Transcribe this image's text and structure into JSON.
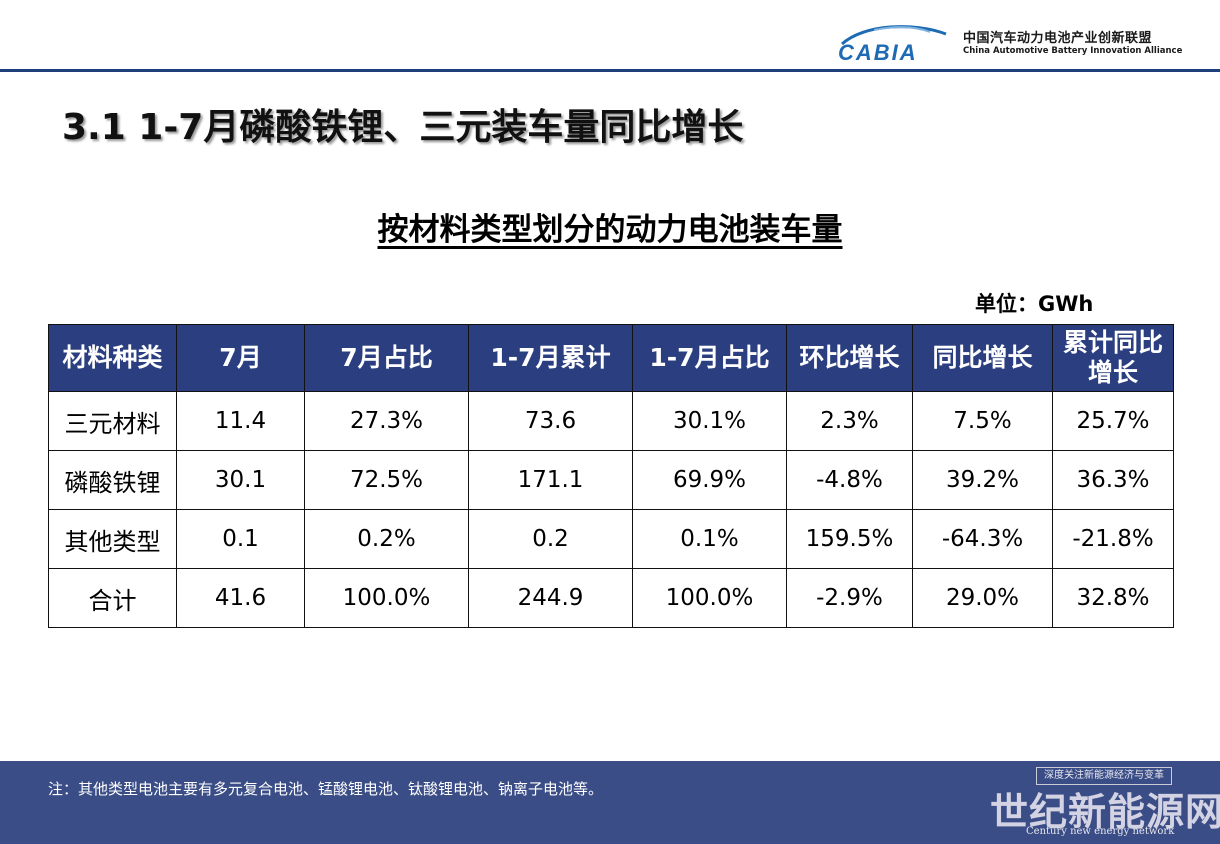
{
  "header": {
    "logo_text": "CABIA",
    "org_cn": "中国汽车动力电池产业创新联盟",
    "org_en": "China Automotive Battery Innovation Alliance"
  },
  "title": "3.1 1-7月磷酸铁锂、三元装车量同比增长",
  "subtitle": "按材料类型划分的动力电池装车量",
  "unit": "单位：GWh",
  "table": {
    "headers": [
      "材料种类",
      "7月",
      "7月占比",
      "1-7月累计",
      "1-7月占比",
      "环比增长",
      "同比增长",
      "累计同比增长"
    ],
    "rows": [
      [
        "三元材料",
        "11.4",
        "27.3%",
        "73.6",
        "30.1%",
        "2.3%",
        "7.5%",
        "25.7%"
      ],
      [
        "磷酸铁锂",
        "30.1",
        "72.5%",
        "171.1",
        "69.9%",
        "-4.8%",
        "39.2%",
        "36.3%"
      ],
      [
        "其他类型",
        "0.1",
        "0.2%",
        "0.2",
        "0.1%",
        "159.5%",
        "-64.3%",
        "-21.8%"
      ],
      [
        "合计",
        "41.6",
        "100.0%",
        "244.9",
        "100.0%",
        "-2.9%",
        "29.0%",
        "32.8%"
      ]
    ]
  },
  "footer": {
    "note": "注：其他类型电池主要有多元复合电池、锰酸锂电池、钛酸锂电池、钠离子电池等。",
    "watermark_tag": "深度关注新能源经济与变革",
    "watermark_cn": "世纪新能源网",
    "watermark_en": "Century new energy network"
  },
  "colors": {
    "accent": "#2b3f80",
    "footer_bg": "#3a4d86",
    "logo_blue": "#1e6ab3"
  }
}
